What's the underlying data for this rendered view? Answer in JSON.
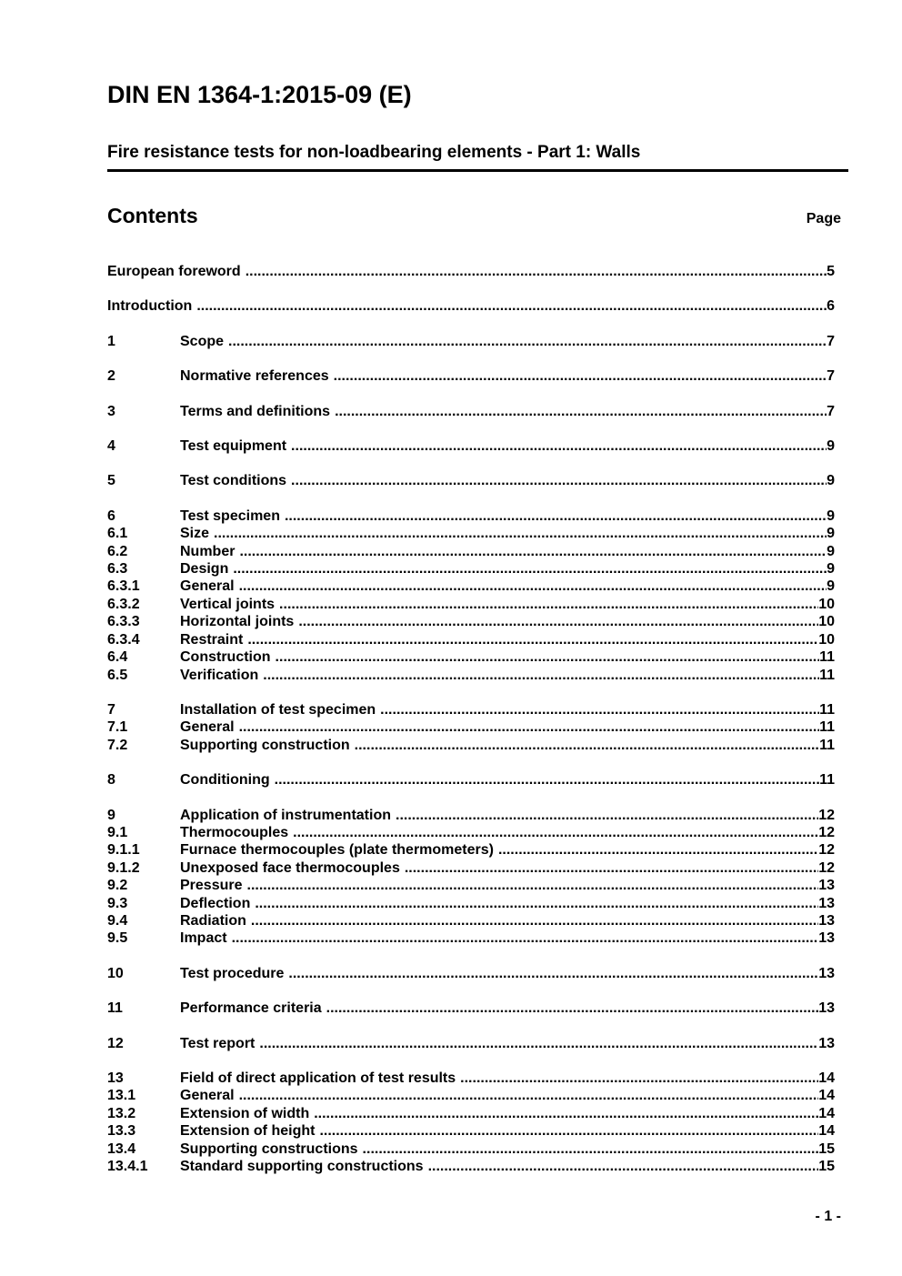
{
  "header": {
    "doc_number": "DIN EN 1364-1:2015-09 (E)",
    "doc_title": "Fire resistance tests for non-loadbearing elements - Part 1: Walls"
  },
  "contents": {
    "heading": "Contents",
    "page_label": "Page"
  },
  "toc": {
    "groups": [
      {
        "entries": [
          {
            "num": "",
            "title": "European foreword",
            "page": "5"
          }
        ]
      },
      {
        "entries": [
          {
            "num": "",
            "title": "Introduction",
            "page": "6"
          }
        ]
      },
      {
        "entries": [
          {
            "num": "1",
            "title": "Scope",
            "page": "7"
          }
        ]
      },
      {
        "entries": [
          {
            "num": "2",
            "title": "Normative references",
            "page": "7"
          }
        ]
      },
      {
        "entries": [
          {
            "num": "3",
            "title": "Terms and definitions",
            "page": "7"
          }
        ]
      },
      {
        "entries": [
          {
            "num": "4",
            "title": "Test equipment",
            "page": "9"
          }
        ]
      },
      {
        "entries": [
          {
            "num": "5",
            "title": "Test conditions",
            "page": "9"
          }
        ]
      },
      {
        "entries": [
          {
            "num": "6",
            "title": "Test specimen",
            "page": "9"
          },
          {
            "num": "6.1",
            "title": "Size",
            "page": "9"
          },
          {
            "num": "6.2",
            "title": "Number",
            "page": "9"
          },
          {
            "num": "6.3",
            "title": "Design",
            "page": "9"
          },
          {
            "num": "6.3.1",
            "title": "General",
            "page": "9"
          },
          {
            "num": "6.3.2",
            "title": "Vertical joints",
            "page": "10"
          },
          {
            "num": "6.3.3",
            "title": "Horizontal joints",
            "page": "10"
          },
          {
            "num": "6.3.4",
            "title": "Restraint",
            "page": "10"
          },
          {
            "num": "6.4",
            "title": "Construction",
            "page": "11"
          },
          {
            "num": "6.5",
            "title": "Verification",
            "page": "11"
          }
        ]
      },
      {
        "entries": [
          {
            "num": "7",
            "title": "Installation of test specimen",
            "page": "11"
          },
          {
            "num": "7.1",
            "title": "General",
            "page": "11"
          },
          {
            "num": "7.2",
            "title": "Supporting construction",
            "page": "11"
          }
        ]
      },
      {
        "entries": [
          {
            "num": "8",
            "title": "Conditioning",
            "page": "11"
          }
        ]
      },
      {
        "entries": [
          {
            "num": "9",
            "title": "Application of instrumentation",
            "page": "12"
          },
          {
            "num": "9.1",
            "title": "Thermocouples",
            "page": "12"
          },
          {
            "num": "9.1.1",
            "title": "Furnace thermocouples (plate thermometers)",
            "page": "12"
          },
          {
            "num": "9.1.2",
            "title": "Unexposed face thermocouples",
            "page": "12"
          },
          {
            "num": "9.2",
            "title": "Pressure",
            "page": "13"
          },
          {
            "num": "9.3",
            "title": "Deflection",
            "page": "13"
          },
          {
            "num": "9.4",
            "title": "Radiation",
            "page": "13"
          },
          {
            "num": "9.5",
            "title": "Impact",
            "page": "13"
          }
        ]
      },
      {
        "entries": [
          {
            "num": "10",
            "title": "Test procedure",
            "page": "13"
          }
        ]
      },
      {
        "entries": [
          {
            "num": "11",
            "title": "Performance criteria",
            "page": "13"
          }
        ]
      },
      {
        "entries": [
          {
            "num": "12",
            "title": "Test report",
            "page": "13"
          }
        ]
      },
      {
        "entries": [
          {
            "num": "13",
            "title": "Field of direct application of test results",
            "page": "14"
          },
          {
            "num": "13.1",
            "title": "General",
            "page": "14"
          },
          {
            "num": "13.2",
            "title": "Extension of width",
            "page": "14"
          },
          {
            "num": "13.3",
            "title": "Extension of height",
            "page": "14"
          },
          {
            "num": "13.4",
            "title": "Supporting constructions",
            "page": "15"
          },
          {
            "num": "13.4.1",
            "title": "Standard supporting constructions",
            "page": "15"
          }
        ]
      }
    ]
  },
  "footer": {
    "page_indicator": "- 1 -"
  }
}
